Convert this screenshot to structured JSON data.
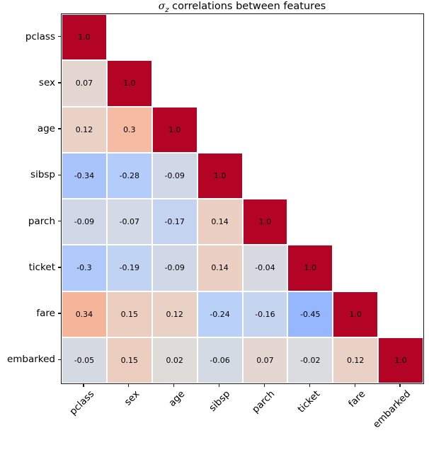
{
  "title": {
    "sigma": "σ",
    "subscript": "z",
    "rest": " correlations between features"
  },
  "chart_data": {
    "type": "heatmap",
    "title": "σz correlations between features",
    "mask": "upper-triangle",
    "categories": [
      "pclass",
      "sex",
      "age",
      "sibsp",
      "parch",
      "ticket",
      "fare",
      "embarked"
    ],
    "rows": [
      [
        "1.0"
      ],
      [
        "0.07",
        "1.0"
      ],
      [
        "0.12",
        "0.3",
        "1.0"
      ],
      [
        "-0.34",
        "-0.28",
        "-0.09",
        "1.0"
      ],
      [
        "-0.09",
        "-0.07",
        "-0.17",
        "0.14",
        "1.0"
      ],
      [
        "-0.3",
        "-0.19",
        "-0.09",
        "0.14",
        "-0.04",
        "1.0"
      ],
      [
        "0.34",
        "0.15",
        "0.12",
        "-0.24",
        "-0.16",
        "-0.45",
        "1.0"
      ],
      [
        "-0.05",
        "0.15",
        "0.02",
        "-0.06",
        "0.07",
        "-0.02",
        "0.12",
        "1.0"
      ]
    ],
    "vmin": -1,
    "vmax": 1,
    "colormap": {
      "name": "coolwarm",
      "min_color": "#3b4cc0",
      "mid_color": "#dddddd",
      "max_color": "#b40426"
    },
    "annotation_color": "#000000",
    "grid": false,
    "legend": "none"
  }
}
